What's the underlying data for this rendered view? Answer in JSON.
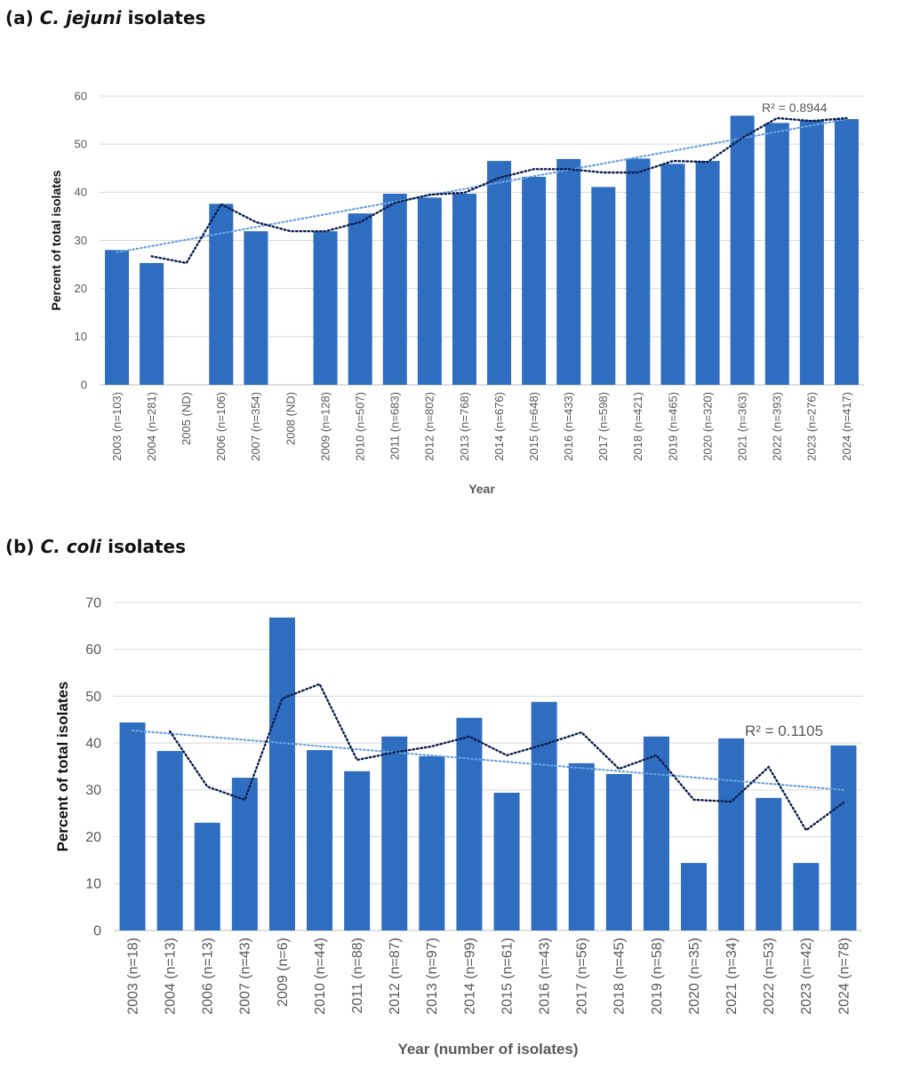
{
  "chart_data": [
    {
      "panel_title": {
        "prefix": "(a)",
        "species": "C. jejuni",
        "suffix": "isolates"
      },
      "type": "bar",
      "xlabel": "Year",
      "ylabel": "Percent of total isolates",
      "ylim": [
        0,
        60
      ],
      "yticks": [
        0,
        10,
        20,
        30,
        40,
        50,
        60
      ],
      "grid": true,
      "categories": [
        "2003 (n=103)",
        "2004 (n=281)",
        "2005 (ND)",
        "2006 (n=106)",
        "2007 (n=354)",
        "2008 (ND)",
        "2009 (n=128)",
        "2010 (n=507)",
        "2011 (n=683)",
        "2012 (n=802)",
        "2013 (n=768)",
        "2014 (n=676)",
        "2015 (n=648)",
        "2016 (n=433)",
        "2017 (n=598)",
        "2018 (n=421)",
        "2019 (n=465)",
        "2020 (n=320)",
        "2021 (n=363)",
        "2022 (n=393)",
        "2023 (n=276)",
        "2024 (n=417)"
      ],
      "values": [
        28.0,
        25.3,
        null,
        37.6,
        31.9,
        null,
        31.9,
        35.6,
        39.7,
        38.9,
        39.7,
        46.5,
        43.2,
        46.9,
        41.1,
        47.0,
        45.9,
        46.5,
        55.9,
        54.4,
        55.0,
        55.2
      ],
      "moving_average": [
        null,
        26.7,
        25.3,
        37.5,
        33.8,
        31.9,
        31.9,
        33.8,
        37.8,
        39.5,
        39.9,
        43.0,
        44.8,
        44.8,
        44.1,
        44.1,
        46.5,
        46.3,
        51.3,
        55.4,
        54.8,
        55.4
      ],
      "trendline": {
        "type": "linear",
        "start": 27.5,
        "end": 55.2,
        "r2_label": "R² = 0.8944"
      },
      "colors": {
        "bar": "#2E6DBF",
        "moving_average": "#0D1F4F",
        "trendline": "#6AA1DD",
        "grid": "#D9D9D9"
      }
    },
    {
      "panel_title": {
        "prefix": "(b)",
        "species": "C. coli",
        "suffix": "isolates"
      },
      "type": "bar",
      "xlabel": "Year (number of isolates)",
      "ylabel": "Percent of total isolates",
      "ylim": [
        0,
        70
      ],
      "yticks": [
        0,
        10,
        20,
        30,
        40,
        50,
        60,
        70
      ],
      "grid": true,
      "categories": [
        "2003 (n=18)",
        "2004 (n=13)",
        "2006 (n=13)",
        "2007 (n=43)",
        "2009 (n=6)",
        "2010 (n=44)",
        "2011 (n=88)",
        "2012 (n=87)",
        "2013 (n=97)",
        "2014 (n=99)",
        "2015 (n=61)",
        "2016 (n=43)",
        "2017 (n=56)",
        "2018 (n=45)",
        "2019 (n=58)",
        "2020 (n=35)",
        "2021 (n=34)",
        "2022 (n=53)",
        "2023 (n=42)",
        "2024 (n=78)"
      ],
      "values": [
        44.4,
        38.3,
        23.0,
        32.6,
        66.8,
        38.5,
        34.0,
        41.4,
        37.2,
        45.4,
        29.4,
        48.8,
        35.7,
        33.4,
        41.4,
        14.4,
        41.0,
        28.3,
        14.4,
        39.5
      ],
      "moving_average": [
        null,
        42.5,
        30.7,
        27.9,
        49.5,
        52.6,
        36.4,
        38.0,
        39.3,
        41.4,
        37.4,
        39.7,
        42.3,
        34.5,
        37.4,
        27.9,
        27.5,
        34.9,
        21.4,
        27.3
      ],
      "trendline": {
        "type": "linear",
        "start": 42.7,
        "end": 30.0,
        "r2_label": "R² = 0.1105"
      },
      "colors": {
        "bar": "#2E6DBF",
        "moving_average": "#0D1F4F",
        "trendline": "#6AA1DD",
        "grid": "#D9D9D9"
      }
    }
  ]
}
